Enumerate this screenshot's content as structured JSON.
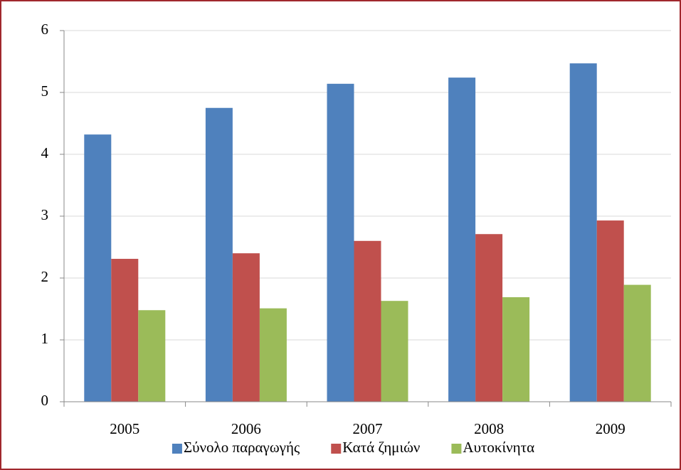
{
  "chart_data": {
    "type": "bar",
    "categories": [
      "2005",
      "2006",
      "2007",
      "2008",
      "2009"
    ],
    "series": [
      {
        "name": "Σύνολο παραγωγής",
        "color": "#4f81bd",
        "values": [
          4.32,
          4.75,
          5.14,
          5.24,
          5.47
        ]
      },
      {
        "name": "Κατά ζημιών",
        "color": "#c0504d",
        "values": [
          2.31,
          2.4,
          2.6,
          2.71,
          2.93
        ]
      },
      {
        "name": "Αυτοκίνητα",
        "color": "#9bbb59",
        "values": [
          1.48,
          1.51,
          1.63,
          1.69,
          1.89
        ]
      }
    ],
    "ylim": [
      0,
      6
    ],
    "yticks": [
      0,
      1,
      2,
      3,
      4,
      5,
      6
    ],
    "grid": true,
    "legend": "bottom"
  }
}
